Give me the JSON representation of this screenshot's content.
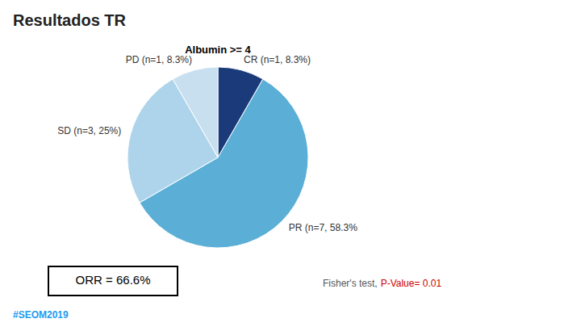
{
  "chart_data": {
    "type": "pie",
    "title": "Resultados TR",
    "subtitle": "Albumin >= 4",
    "categories": [
      "CR (n=1, 8.3%)",
      "PR (n=7, 58.3%",
      "SD (n=3, 25%)",
      "PD (n=1, 8.3%)"
    ],
    "values": [
      8.3,
      58.3,
      25.0,
      8.3
    ],
    "colors": [
      "#1a3a7a",
      "#5bafd6",
      "#aed4ec",
      "#c8dff0"
    ],
    "annotations": [
      {
        "text": "Fisher's test,",
        "color": "#555555"
      },
      {
        "text": "P-Value= 0.01",
        "color": "#cc0000"
      },
      {
        "text": "ORR = 66.6%"
      },
      {
        "text": "#SEOM2019",
        "color": "#1d9bf0"
      }
    ]
  }
}
